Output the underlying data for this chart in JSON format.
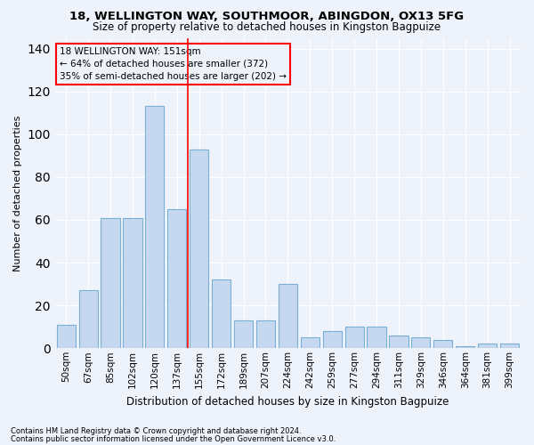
{
  "title1": "18, WELLINGTON WAY, SOUTHMOOR, ABINGDON, OX13 5FG",
  "title2": "Size of property relative to detached houses in Kingston Bagpuize",
  "xlabel": "Distribution of detached houses by size in Kingston Bagpuize",
  "ylabel": "Number of detached properties",
  "footnote1": "Contains HM Land Registry data © Crown copyright and database right 2024.",
  "footnote2": "Contains public sector information licensed under the Open Government Licence v3.0.",
  "categories": [
    "50sqm",
    "67sqm",
    "85sqm",
    "102sqm",
    "120sqm",
    "137sqm",
    "155sqm",
    "172sqm",
    "189sqm",
    "207sqm",
    "224sqm",
    "242sqm",
    "259sqm",
    "277sqm",
    "294sqm",
    "311sqm",
    "329sqm",
    "346sqm",
    "364sqm",
    "381sqm",
    "399sqm"
  ],
  "values": [
    11,
    27,
    61,
    61,
    113,
    65,
    93,
    32,
    13,
    13,
    30,
    5,
    8,
    10,
    10,
    6,
    5,
    4,
    1,
    2,
    2
  ],
  "bar_color": "#c5d8f0",
  "bar_edge_color": "#7aafd4",
  "vline_pos": 5.5,
  "annotation_title": "18 WELLINGTON WAY: 151sqm",
  "annotation_line2": "← 64% of detached houses are smaller (372)",
  "annotation_line3": "35% of semi-detached houses are larger (202) →",
  "bg_color": "#eef2fa",
  "grid_color": "#ffffff",
  "ylim": [
    0,
    145
  ],
  "yticks": [
    0,
    20,
    40,
    60,
    80,
    100,
    120,
    140
  ],
  "title1_fontsize": 9.5,
  "title2_fontsize": 8.5
}
